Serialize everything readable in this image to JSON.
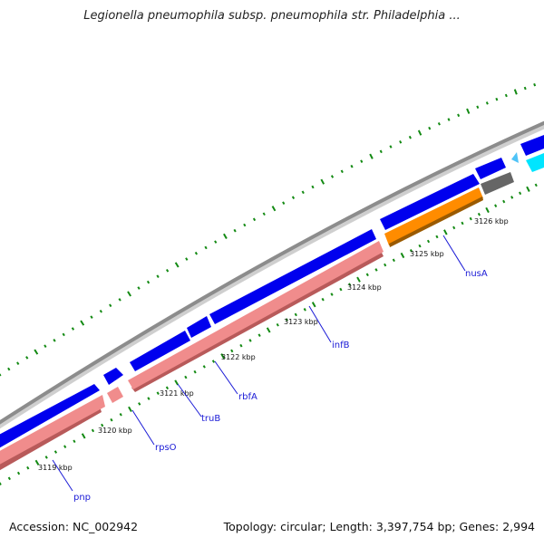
{
  "title": "Legionella pneumophila subsp. pneumophila str. Philadelphia ...",
  "footer": {
    "accession": "Accession: NC_002942",
    "summary": "Topology: circular; Length: 3,397,754 bp; Genes: 2,994"
  },
  "colors": {
    "backbone": "#8c8c8c",
    "forward_cds": "#0000ee",
    "reverse_cds": "#f08c8c",
    "reverse_cds_shade": "#b85a5a",
    "nusA_gene": "#ff8c00",
    "grey_feature": "#666666",
    "cyan_feature": "#00e5ff",
    "tick_marks": "#138a13",
    "gene_label": "#1a1ad6"
  },
  "ruler": {
    "labels": [
      "3119 kbp",
      "3120 kbp",
      "3121 kbp",
      "3122 kbp",
      "3123 kbp",
      "3124 kbp",
      "3125 kbp",
      "3126 kbp"
    ]
  },
  "genes": [
    "pnp",
    "rpsO",
    "truB",
    "rbfA",
    "infB",
    "nusA"
  ]
}
